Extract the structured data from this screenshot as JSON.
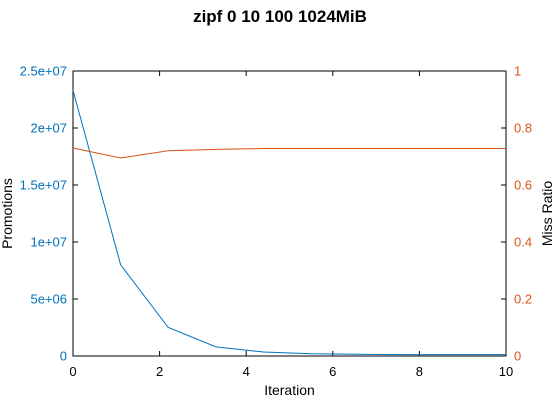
{
  "chart_data": {
    "type": "line",
    "title": "zipf 0 10 100 1024MiB",
    "xlabel": "Iteration",
    "ylabel": "Promotions",
    "y2label": "Miss Ratio",
    "xlim": [
      0,
      10
    ],
    "ylim": [
      0,
      25000000
    ],
    "y2lim": [
      0,
      1
    ],
    "x_ticks": [
      "0",
      "2",
      "4",
      "6",
      "8",
      "10"
    ],
    "y_ticks": [
      "0",
      "5e+06",
      "1e+07",
      "1.5e+07",
      "2e+07",
      "2.5e+07"
    ],
    "y2_ticks": [
      "0",
      "0.2",
      "0.4",
      "0.6",
      "0.8",
      "1"
    ],
    "grid": false,
    "colors": {
      "promotions": "#0072bd",
      "miss_ratio": "#d95319"
    },
    "series": [
      {
        "axis": "left",
        "x": [
          0,
          1.1,
          2.2,
          3.3,
          4.4,
          5.5,
          6.6,
          7.7,
          8.8,
          10
        ],
        "values": [
          23300000,
          8000000,
          2500000,
          800000,
          350000,
          200000,
          150000,
          120000,
          120000,
          120000
        ]
      },
      {
        "axis": "right",
        "x": [
          0,
          1.1,
          2.2,
          3.3,
          4.4,
          5.5,
          6.6,
          7.7,
          8.8,
          10
        ],
        "values": [
          0.73,
          0.695,
          0.72,
          0.725,
          0.728,
          0.728,
          0.728,
          0.728,
          0.728,
          0.728
        ]
      }
    ]
  }
}
